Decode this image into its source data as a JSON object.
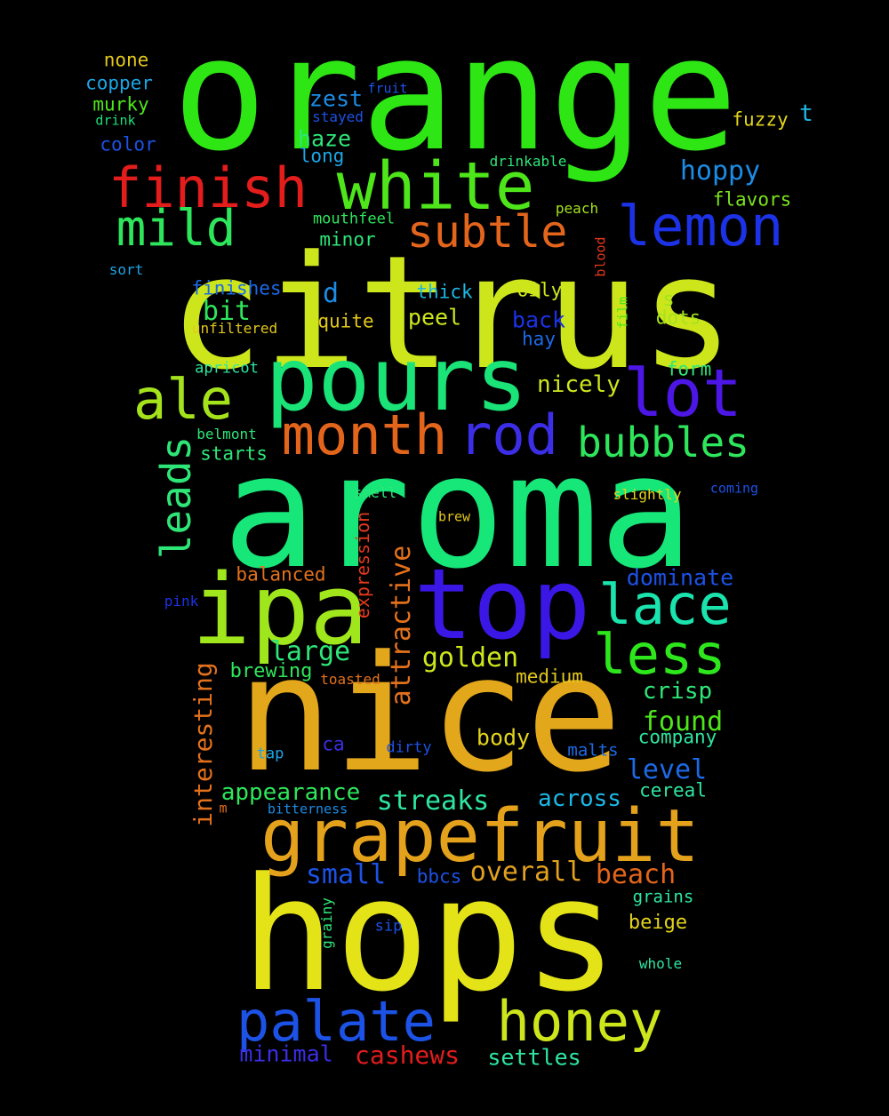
{
  "words": [
    {
      "text": "orange",
      "color": "#2de614"
    },
    {
      "text": "citrus",
      "color": "#cde61c"
    },
    {
      "text": "aroma",
      "color": "#17e678"
    },
    {
      "text": "nice",
      "color": "#e3a71c"
    },
    {
      "text": "hops",
      "color": "#e3e318"
    },
    {
      "text": "pours",
      "color": "#1ae378"
    },
    {
      "text": "top",
      "color": "#3b17e6"
    },
    {
      "text": "ipa",
      "color": "#a0e61c"
    },
    {
      "text": "grapefruit",
      "color": "#e3a11c"
    },
    {
      "text": "finish",
      "color": "#e31c1c"
    },
    {
      "text": "white",
      "color": "#4ee61a"
    },
    {
      "text": "lemon",
      "color": "#1c32e6"
    },
    {
      "text": "mild",
      "color": "#2ee65b"
    },
    {
      "text": "subtle",
      "color": "#e3651c"
    },
    {
      "text": "ale",
      "color": "#a4e31c"
    },
    {
      "text": "month",
      "color": "#e3651c"
    },
    {
      "text": "rod",
      "color": "#3b2ee6"
    },
    {
      "text": "lot",
      "color": "#4c17e6"
    },
    {
      "text": "bubbles",
      "color": "#2ee65b"
    },
    {
      "text": "lace",
      "color": "#1ae3ae"
    },
    {
      "text": "less",
      "color": "#2de61c"
    },
    {
      "text": "palate",
      "color": "#1c52e6"
    },
    {
      "text": "honey",
      "color": "#cde61c"
    },
    {
      "text": "leads",
      "color": "#2ee678"
    },
    {
      "text": "attractive",
      "color": "#e3711c"
    },
    {
      "text": "interesting",
      "color": "#e3711c"
    },
    {
      "text": "expression",
      "color": "#e3391c"
    },
    {
      "text": "none",
      "color": "#e3c71c"
    },
    {
      "text": "copper",
      "color": "#1ca5e6"
    },
    {
      "text": "murky",
      "color": "#4ee61a"
    },
    {
      "text": "drink",
      "color": "#1ae378"
    },
    {
      "text": "color",
      "color": "#1c52e6"
    },
    {
      "text": "zest",
      "color": "#1c8ce6"
    },
    {
      "text": "fruit",
      "color": "#1c52e6"
    },
    {
      "text": "stayed",
      "color": "#1c52e6"
    },
    {
      "text": "haze",
      "color": "#2ee678"
    },
    {
      "text": "long",
      "color": "#1ca5e6"
    },
    {
      "text": "fuzzy",
      "color": "#e3d41c"
    },
    {
      "text": "t",
      "color": "#1cb9e6"
    },
    {
      "text": "drinkable",
      "color": "#2ee678"
    },
    {
      "text": "hoppy",
      "color": "#1c8ce6"
    },
    {
      "text": "flavors",
      "color": "#7be31c"
    },
    {
      "text": "peach",
      "color": "#a4e31c"
    },
    {
      "text": "mouthfeel",
      "color": "#2ee65b"
    },
    {
      "text": "minor",
      "color": "#2ee678"
    },
    {
      "text": "blood",
      "color": "#e3391c"
    },
    {
      "text": "sort",
      "color": "#1ca5e6"
    },
    {
      "text": "finishes",
      "color": "#1c6ae6"
    },
    {
      "text": "d",
      "color": "#1c8ce6"
    },
    {
      "text": "thick",
      "color": "#1cb9e6"
    },
    {
      "text": "oily",
      "color": "#cde61c"
    },
    {
      "text": "film",
      "color": "#4ee61a"
    },
    {
      "text": "s",
      "color": "#a4e31c"
    },
    {
      "text": "bit",
      "color": "#2ee65b"
    },
    {
      "text": "quite",
      "color": "#e3c71c"
    },
    {
      "text": "peel",
      "color": "#cde61c"
    },
    {
      "text": "back",
      "color": "#1c32e6"
    },
    {
      "text": "dots",
      "color": "#a4e31c"
    },
    {
      "text": "unfiltered",
      "color": "#e3c71c"
    },
    {
      "text": "hay",
      "color": "#1c6ae6"
    },
    {
      "text": "apricot",
      "color": "#2ee6a0"
    },
    {
      "text": "form",
      "color": "#2ee678"
    },
    {
      "text": "nicely",
      "color": "#cde61c"
    },
    {
      "text": "belmont",
      "color": "#2ee678"
    },
    {
      "text": "starts",
      "color": "#2ee678"
    },
    {
      "text": "smell",
      "color": "#2ee678"
    },
    {
      "text": "brew",
      "color": "#e3c71c"
    },
    {
      "text": "slightly",
      "color": "#e3d41c"
    },
    {
      "text": "coming",
      "color": "#1c52e6"
    },
    {
      "text": "balanced",
      "color": "#e3711c"
    },
    {
      "text": "dominate",
      "color": "#1c52e6"
    },
    {
      "text": "pink",
      "color": "#1c32e6"
    },
    {
      "text": "large",
      "color": "#2ee678"
    },
    {
      "text": "golden",
      "color": "#cde61c"
    },
    {
      "text": "brewing",
      "color": "#2ee65b"
    },
    {
      "text": "toasted",
      "color": "#e3711c"
    },
    {
      "text": "medium",
      "color": "#e3c71c"
    },
    {
      "text": "crisp",
      "color": "#2ee678"
    },
    {
      "text": "found",
      "color": "#4ee61a"
    },
    {
      "text": "body",
      "color": "#e3d41c"
    },
    {
      "text": "company",
      "color": "#2ee6a0"
    },
    {
      "text": "tap",
      "color": "#1ca5e6"
    },
    {
      "text": "ca",
      "color": "#3b2ee6"
    },
    {
      "text": "dirty",
      "color": "#1c52e6"
    },
    {
      "text": "malts",
      "color": "#1c6ae6"
    },
    {
      "text": "level",
      "color": "#1c6ae6"
    },
    {
      "text": "appearance",
      "color": "#2ee65b"
    },
    {
      "text": "streaks",
      "color": "#2ee6a0"
    },
    {
      "text": "across",
      "color": "#1cb9e6"
    },
    {
      "text": "cereal",
      "color": "#2ee6a0"
    },
    {
      "text": "m",
      "color": "#e3711c"
    },
    {
      "text": "bitterness",
      "color": "#1c8ce6"
    },
    {
      "text": "small",
      "color": "#1c52e6"
    },
    {
      "text": "bbcs",
      "color": "#1c52e6"
    },
    {
      "text": "overall",
      "color": "#e3a11c"
    },
    {
      "text": "beach",
      "color": "#e3651c"
    },
    {
      "text": "grains",
      "color": "#2ee6a0"
    },
    {
      "text": "grainy",
      "color": "#2ee678"
    },
    {
      "text": "sip",
      "color": "#1c52e6"
    },
    {
      "text": "beige",
      "color": "#e3d41c"
    },
    {
      "text": "whole",
      "color": "#2ee6a0"
    },
    {
      "text": "minimal",
      "color": "#3b2ee6"
    },
    {
      "text": "cashews",
      "color": "#e31c1c"
    },
    {
      "text": "settles",
      "color": "#2ee6a0"
    }
  ]
}
